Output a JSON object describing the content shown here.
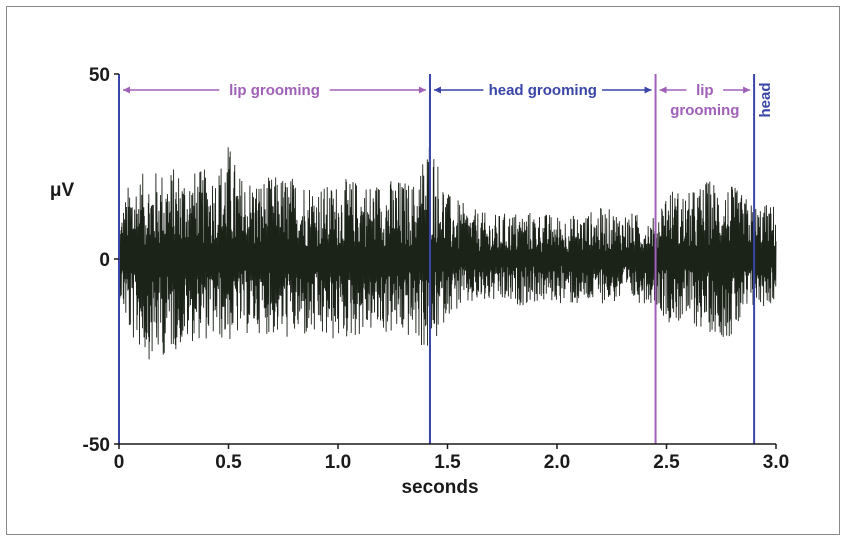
{
  "chart_data": {
    "type": "line",
    "title": "",
    "xlabel": "seconds",
    "ylabel": "μV",
    "xlim": [
      0,
      3.0
    ],
    "ylim": [
      -50,
      50
    ],
    "x_ticks": [
      {
        "value": 0,
        "label": "0"
      },
      {
        "value": 0.5,
        "label": "0.5"
      },
      {
        "value": 1.0,
        "label": "1.0"
      },
      {
        "value": 1.5,
        "label": "1.5"
      },
      {
        "value": 2.0,
        "label": "2.0"
      },
      {
        "value": 2.5,
        "label": "2.5"
      },
      {
        "value": 3.0,
        "label": "3.0"
      }
    ],
    "y_ticks": [
      {
        "value": 50,
        "label": "50"
      },
      {
        "value": 0,
        "label": "0"
      },
      {
        "value": -50,
        "label": "-50"
      }
    ],
    "grid": false,
    "legend": "none",
    "series": [
      {
        "color": "#1b2218",
        "envelope": {
          "x": [
            0,
            0.05,
            0.15,
            0.25,
            0.35,
            0.45,
            0.5,
            0.55,
            0.65,
            0.75,
            0.85,
            0.95,
            1.05,
            1.15,
            1.25,
            1.35,
            1.42,
            1.5,
            1.6,
            1.7,
            1.8,
            1.9,
            2.0,
            2.1,
            2.2,
            2.3,
            2.4,
            2.45,
            2.5,
            2.6,
            2.7,
            2.8,
            2.9,
            3.0
          ],
          "upper": [
            10,
            22,
            24,
            25,
            24,
            25,
            32,
            23,
            22,
            23,
            22,
            20,
            22,
            21,
            22,
            21,
            35,
            18,
            14,
            12,
            13,
            13,
            12,
            12,
            14,
            13,
            12,
            12,
            20,
            18,
            22,
            20,
            15,
            15
          ],
          "lower": [
            -10,
            -22,
            -28,
            -25,
            -22,
            -22,
            -23,
            -21,
            -20,
            -22,
            -22,
            -23,
            -22,
            -20,
            -21,
            -22,
            -27,
            -15,
            -13,
            -12,
            -13,
            -12,
            -12,
            -13,
            -12,
            -12,
            -12,
            -12,
            -17,
            -18,
            -20,
            -22,
            -14,
            -12
          ]
        }
      }
    ],
    "segments": [
      {
        "start": 0,
        "end": 1.42,
        "label": "lip grooming",
        "color": "#a060b8",
        "arrows": true
      },
      {
        "start": 1.42,
        "end": 2.45,
        "label": "head grooming",
        "color": "#3a45a8",
        "arrows": true
      },
      {
        "start": 2.45,
        "end": 2.9,
        "label": "lip",
        "label2": "grooming",
        "color": "#a060b8",
        "arrows": true
      },
      {
        "start": 2.9,
        "end": 3.0,
        "label": "head",
        "color": "#3a45a8",
        "arrows": false,
        "vertical": true
      }
    ],
    "boundaries": [
      {
        "x": 0,
        "color": "#3a45a8"
      },
      {
        "x": 1.42,
        "color": "#3a45a8"
      },
      {
        "x": 2.45,
        "color": "#a060b8"
      },
      {
        "x": 2.9,
        "color": "#3a45a8"
      }
    ]
  }
}
